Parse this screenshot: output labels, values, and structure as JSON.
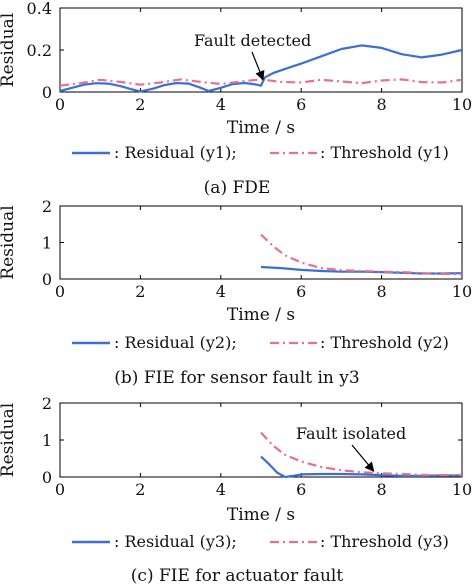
{
  "chart_data": [
    {
      "type": "line",
      "caption": "(a) FDE",
      "xlabel": "Time / s",
      "ylabel": "Residual",
      "xlim": [
        0,
        10
      ],
      "ylim": [
        0,
        0.4
      ],
      "xticks": [
        "0",
        "2",
        "4",
        "6",
        "8",
        "10"
      ],
      "yticks": [
        "0",
        "0.2",
        "0.4"
      ],
      "series": [
        {
          "name": ": Residual (y1);",
          "color": "#3a6fd6",
          "style": "solid",
          "x": [
            0,
            0.3,
            0.6,
            0.9,
            1.2,
            1.5,
            1.8,
            2.0,
            2.3,
            2.6,
            2.9,
            3.2,
            3.5,
            3.7,
            4.0,
            4.3,
            4.6,
            4.9,
            5.0,
            5.1,
            5.3,
            5.6,
            6.0,
            6.5,
            7.0,
            7.5,
            8.0,
            8.5,
            9.0,
            9.5,
            10.0
          ],
          "y": [
            0.005,
            0.02,
            0.035,
            0.042,
            0.04,
            0.028,
            0.012,
            0.003,
            0.015,
            0.033,
            0.043,
            0.04,
            0.02,
            0.005,
            0.02,
            0.038,
            0.043,
            0.035,
            0.03,
            0.07,
            0.09,
            0.11,
            0.135,
            0.17,
            0.205,
            0.222,
            0.21,
            0.18,
            0.165,
            0.178,
            0.2
          ]
        },
        {
          "name": ": Threshold (y1)",
          "color": "#e8708a",
          "style": "dashdot",
          "x": [
            0,
            0.5,
            1.0,
            1.5,
            2.0,
            2.5,
            3.0,
            3.5,
            4.0,
            4.5,
            5.0,
            5.5,
            6.0,
            6.5,
            7.0,
            7.5,
            8.0,
            8.5,
            9.0,
            9.5,
            10.0
          ],
          "y": [
            0.03,
            0.042,
            0.058,
            0.048,
            0.035,
            0.045,
            0.06,
            0.048,
            0.038,
            0.05,
            0.06,
            0.048,
            0.045,
            0.058,
            0.05,
            0.042,
            0.055,
            0.06,
            0.047,
            0.045,
            0.058
          ]
        }
      ],
      "annotations": [
        {
          "text": "Fault detected",
          "at_x": 5.0,
          "at_y": 0.05
        }
      ]
    },
    {
      "type": "line",
      "caption": "(b) FIE for sensor fault in y3",
      "xlabel": "Time / s",
      "ylabel": "Residual",
      "xlim": [
        0,
        10
      ],
      "ylim": [
        0,
        2
      ],
      "xticks": [
        "0",
        "2",
        "4",
        "6",
        "8",
        "10"
      ],
      "yticks": [
        "0",
        "1",
        "2"
      ],
      "series": [
        {
          "name": ": Residual (y2);",
          "color": "#3a6fd6",
          "style": "solid",
          "x": [
            5.0,
            5.5,
            6.0,
            6.5,
            7.0,
            7.5,
            8.0,
            8.5,
            9.0,
            9.5,
            10.0
          ],
          "y": [
            0.33,
            0.3,
            0.25,
            0.22,
            0.2,
            0.2,
            0.19,
            0.17,
            0.15,
            0.15,
            0.16
          ]
        },
        {
          "name": ": Threshold (y2)",
          "color": "#e8708a",
          "style": "dashdot",
          "x": [
            5.0,
            5.3,
            5.6,
            6.0,
            6.5,
            7.0,
            7.5,
            8.0,
            8.5,
            9.0,
            9.5,
            10.0
          ],
          "y": [
            1.22,
            0.9,
            0.65,
            0.45,
            0.3,
            0.24,
            0.22,
            0.2,
            0.19,
            0.16,
            0.14,
            0.13
          ]
        }
      ]
    },
    {
      "type": "line",
      "caption": "(c) FIE for actuator fault",
      "xlabel": "Time / s",
      "ylabel": "Residual",
      "xlim": [
        0,
        10
      ],
      "ylim": [
        0,
        2
      ],
      "xticks": [
        "0",
        "2",
        "4",
        "6",
        "8",
        "10"
      ],
      "yticks": [
        "0",
        "1",
        "2"
      ],
      "series": [
        {
          "name": ": Residual (y3);",
          "color": "#3a6fd6",
          "style": "solid",
          "x": [
            5.0,
            5.2,
            5.4,
            5.6,
            5.8,
            6.0,
            6.5,
            7.0,
            7.5,
            8.0,
            8.5,
            9.0,
            9.5,
            10.0
          ],
          "y": [
            0.55,
            0.35,
            0.12,
            0.0,
            0.03,
            0.07,
            0.08,
            0.08,
            0.07,
            0.05,
            0.03,
            0.03,
            0.04,
            0.04
          ]
        },
        {
          "name": ": Threshold (y3)",
          "color": "#e8708a",
          "style": "dashdot",
          "x": [
            5.0,
            5.3,
            5.6,
            6.0,
            6.5,
            7.0,
            7.5,
            8.0,
            8.5,
            9.0,
            9.5,
            10.0
          ],
          "y": [
            1.2,
            0.85,
            0.6,
            0.42,
            0.27,
            0.18,
            0.13,
            0.1,
            0.08,
            0.06,
            0.05,
            0.05
          ]
        }
      ],
      "annotations": [
        {
          "text": "Fault isolated",
          "at_x": 7.8,
          "at_y": 0.08
        }
      ]
    }
  ]
}
